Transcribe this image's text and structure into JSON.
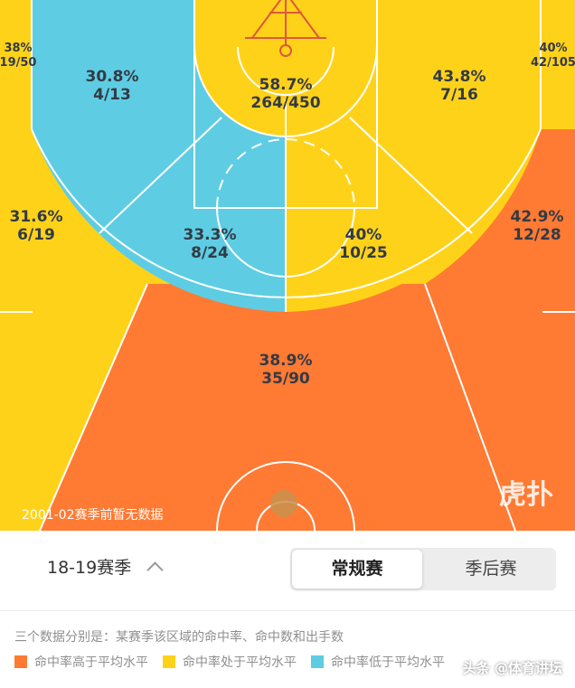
{
  "chart_data": {
    "type": "shot_chart",
    "zones": [
      {
        "zone": "left-corner-three",
        "pct": "38%",
        "made_attempts": "19/50",
        "made": 19,
        "attempts": 50,
        "level": "average"
      },
      {
        "zone": "left-elbow-midrange",
        "pct": "30.8%",
        "made_attempts": "4/13",
        "made": 4,
        "attempts": 13,
        "level": "below"
      },
      {
        "zone": "restricted-area",
        "pct": "58.7%",
        "made_attempts": "264/450",
        "made": 264,
        "attempts": 450,
        "level": "average"
      },
      {
        "zone": "right-elbow-midrange",
        "pct": "43.8%",
        "made_attempts": "7/16",
        "made": 7,
        "attempts": 16,
        "level": "average"
      },
      {
        "zone": "right-corner-three",
        "pct": "40%",
        "made_attempts": "42/105",
        "made": 42,
        "attempts": 105,
        "level": "average"
      },
      {
        "zone": "left-wing-three",
        "pct": "31.6%",
        "made_attempts": "6/19",
        "made": 6,
        "attempts": 19,
        "level": "average"
      },
      {
        "zone": "left-midrange-top",
        "pct": "33.3%",
        "made_attempts": "8/24",
        "made": 8,
        "attempts": 24,
        "level": "below"
      },
      {
        "zone": "right-midrange-top",
        "pct": "40%",
        "made_attempts": "10/25",
        "made": 10,
        "attempts": 25,
        "level": "average"
      },
      {
        "zone": "right-wing-three",
        "pct": "42.9%",
        "made_attempts": "12/28",
        "made": 12,
        "attempts": 28,
        "level": "above"
      },
      {
        "zone": "top-of-key-three",
        "pct": "38.9%",
        "made_attempts": "35/90",
        "made": 35,
        "attempts": 90,
        "level": "above"
      }
    ],
    "colors": {
      "above": "#ff7a33",
      "average": "#ffd21a",
      "below": "#5ecde3"
    }
  },
  "court_note": "2001-02赛季前暂无数据",
  "watermark_logo": "虎扑",
  "season": {
    "label": "18-19赛季"
  },
  "tabs": {
    "regular": "常规赛",
    "playoffs": "季后赛"
  },
  "legend": {
    "description": "三个数据分别是：某赛季该区域的命中率、命中数和出手数",
    "items": [
      {
        "label": "命中率高于平均水平",
        "color": "#ff7a33"
      },
      {
        "label": "命中率处于平均水平",
        "color": "#ffd21a"
      },
      {
        "label": "命中率低于平均水平",
        "color": "#5ecde3"
      }
    ]
  },
  "footer_watermark": "头条 @体育讲坛"
}
